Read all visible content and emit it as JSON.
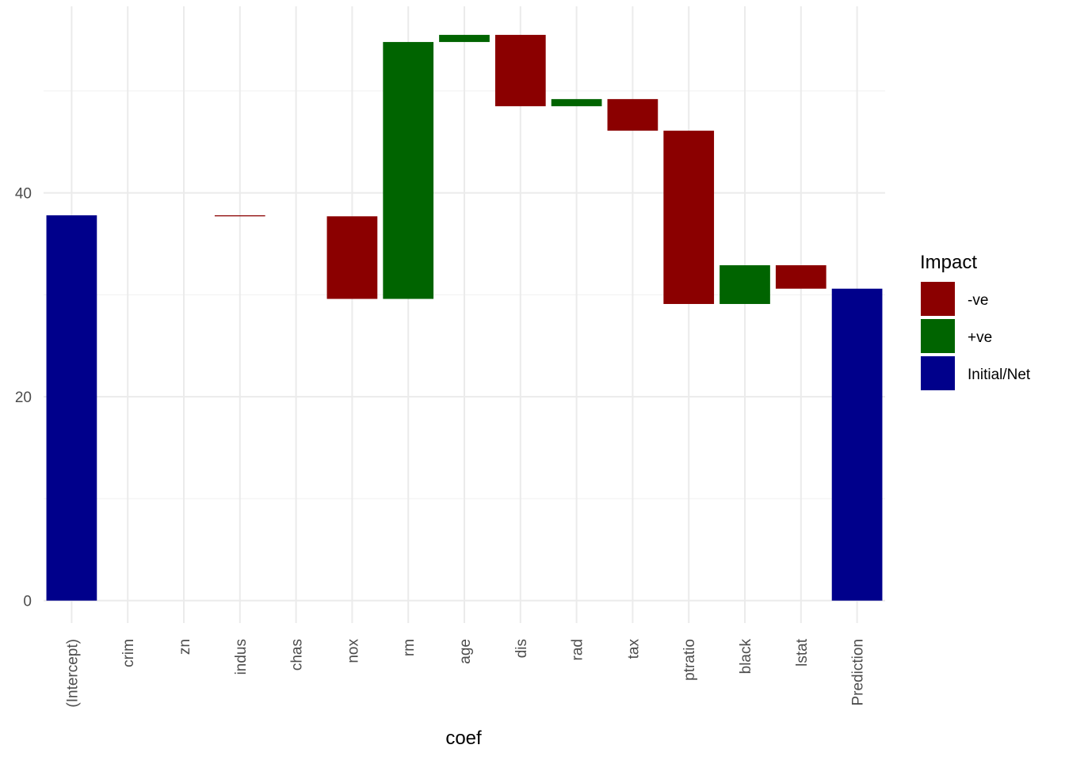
{
  "chart_data": {
    "type": "bar",
    "subtype": "waterfall",
    "xlabel": "coef",
    "ylabel": "",
    "ylim": [
      -2.2,
      58.3
    ],
    "y_ticks": [
      0,
      20,
      40
    ],
    "grid": true,
    "legend": {
      "title": "Impact",
      "position": "right",
      "entries": [
        {
          "label": "-ve",
          "color": "#8B0000"
        },
        {
          "label": "+ve",
          "color": "#006400"
        },
        {
          "label": "Initial/Net",
          "color": "#00008B"
        }
      ]
    },
    "bars": [
      {
        "category": "(Intercept)",
        "start": 0,
        "end": 37.8,
        "impact": "Initial/Net"
      },
      {
        "category": "crim",
        "start": 37.8,
        "end": 37.8,
        "impact": "-ve"
      },
      {
        "category": "zn",
        "start": 37.8,
        "end": 37.8,
        "impact": "+ve"
      },
      {
        "category": "indus",
        "start": 37.8,
        "end": 37.7,
        "impact": "-ve"
      },
      {
        "category": "chas",
        "start": 37.7,
        "end": 37.7,
        "impact": "+ve"
      },
      {
        "category": "nox",
        "start": 37.7,
        "end": 29.6,
        "impact": "-ve"
      },
      {
        "category": "rm",
        "start": 29.6,
        "end": 54.8,
        "impact": "+ve"
      },
      {
        "category": "age",
        "start": 54.8,
        "end": 55.5,
        "impact": "+ve"
      },
      {
        "category": "dis",
        "start": 55.5,
        "end": 48.5,
        "impact": "-ve"
      },
      {
        "category": "rad",
        "start": 48.5,
        "end": 49.2,
        "impact": "+ve"
      },
      {
        "category": "tax",
        "start": 49.2,
        "end": 46.1,
        "impact": "-ve"
      },
      {
        "category": "ptratio",
        "start": 46.1,
        "end": 29.1,
        "impact": "-ve"
      },
      {
        "category": "black",
        "start": 29.1,
        "end": 32.9,
        "impact": "+ve"
      },
      {
        "category": "lstat",
        "start": 32.9,
        "end": 30.6,
        "impact": "-ve"
      },
      {
        "category": "Prediction",
        "start": 0,
        "end": 30.6,
        "impact": "Initial/Net"
      }
    ]
  }
}
